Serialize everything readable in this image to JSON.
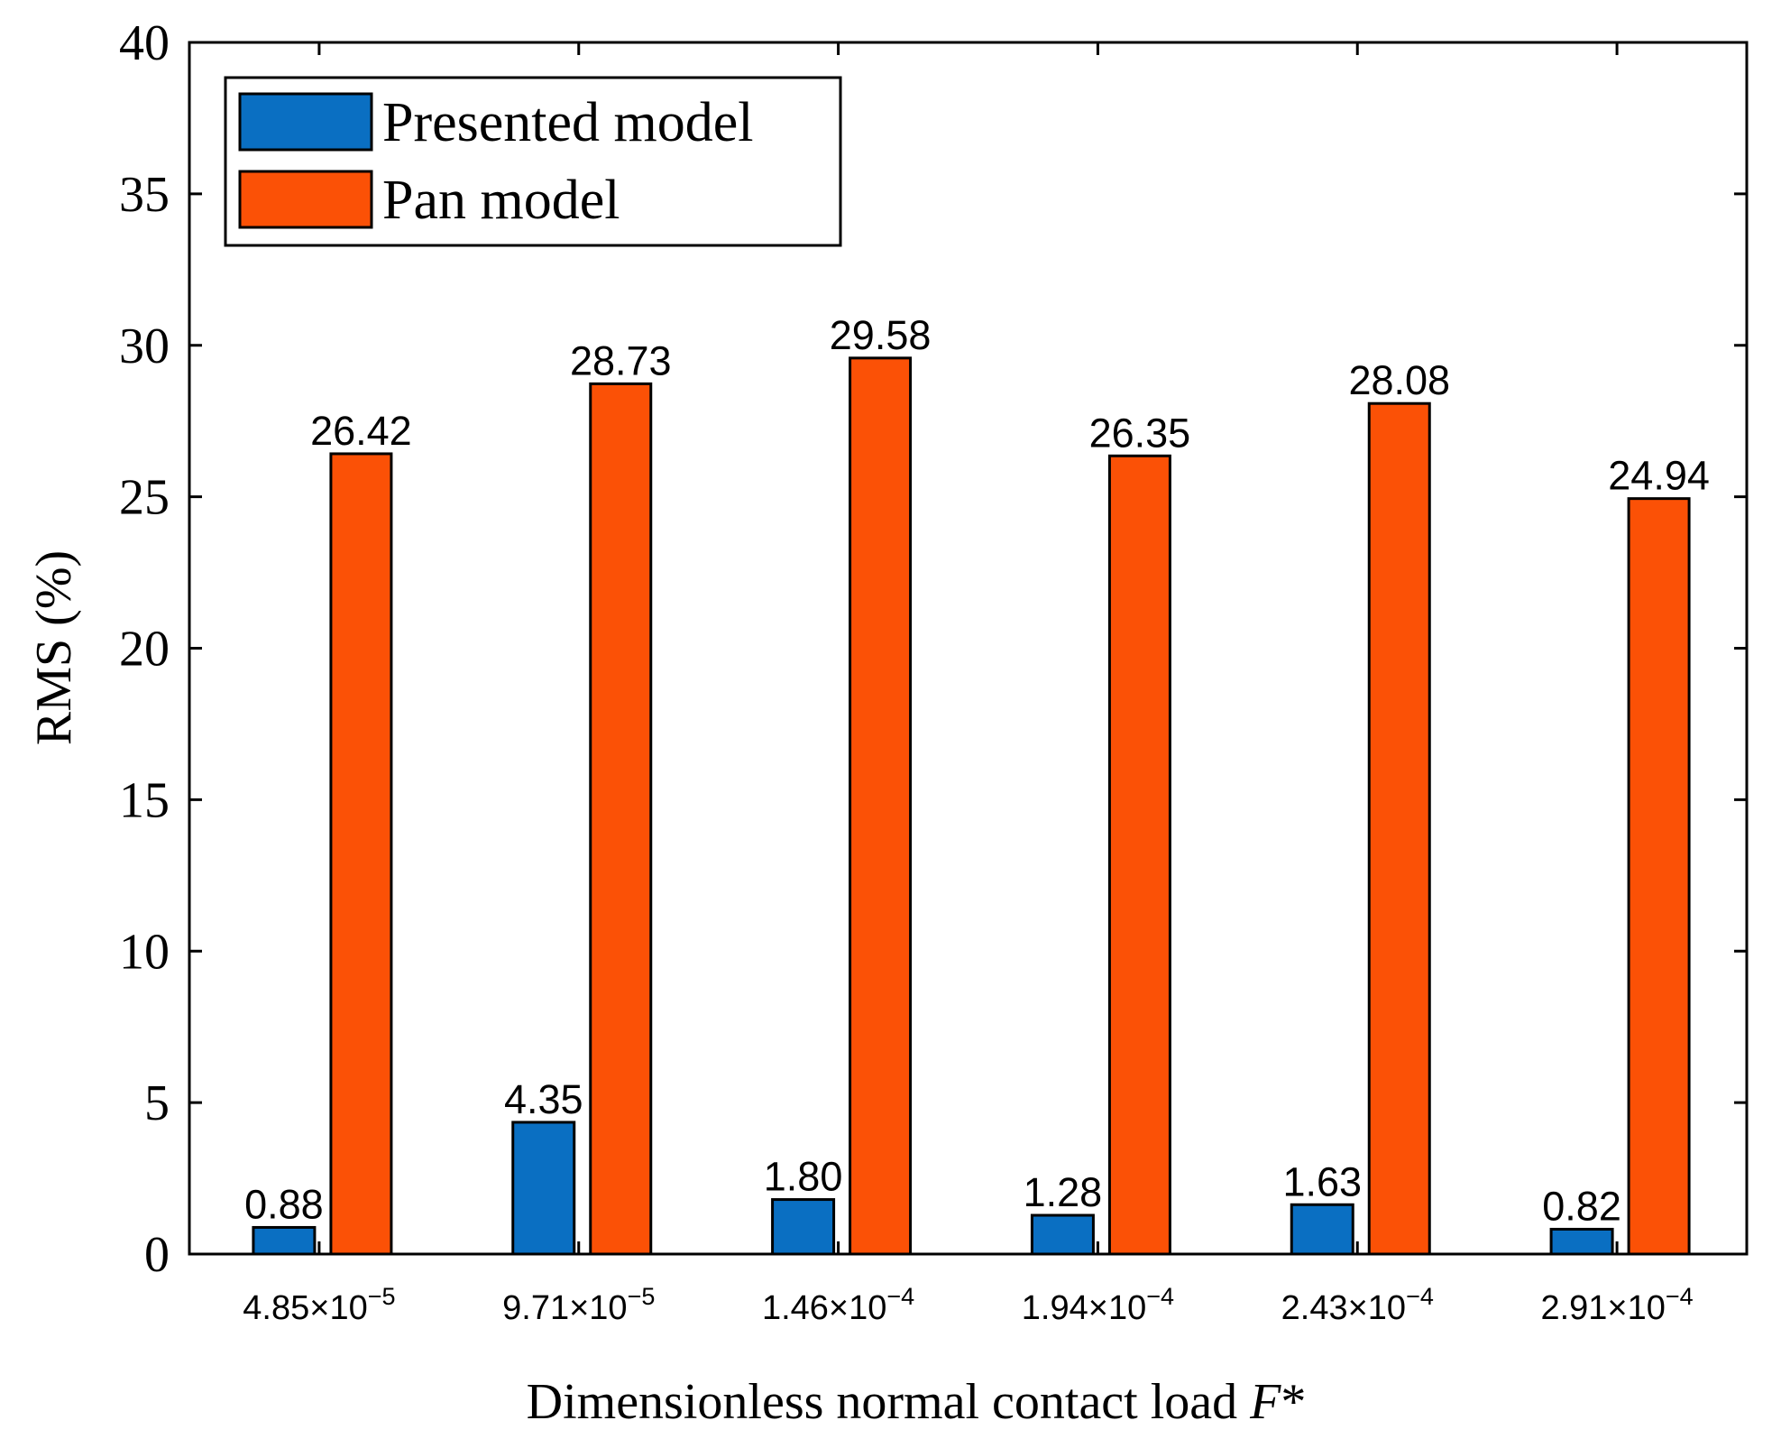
{
  "chart_data": {
    "type": "bar",
    "title": "",
    "xlabel": "Dimensionless normal contact load ",
    "xlabel_italic": "F",
    "xlabel_suffix": "*",
    "ylabel": "RMS (%)",
    "ylim": [
      0,
      40
    ],
    "yticks": [
      0,
      5,
      10,
      15,
      20,
      25,
      30,
      35,
      40
    ],
    "grid": false,
    "legend_position": "top-left",
    "categories": [
      {
        "base": "4.85×10",
        "exp": "−5"
      },
      {
        "base": "9.71×10",
        "exp": "−5"
      },
      {
        "base": "1.46×10",
        "exp": "−4"
      },
      {
        "base": "1.94×10",
        "exp": "−4"
      },
      {
        "base": "2.43×10",
        "exp": "−4"
      },
      {
        "base": "2.91×10",
        "exp": "−4"
      }
    ],
    "series": [
      {
        "name": "Presented model",
        "color": "#0a6fc2",
        "values": [
          0.88,
          4.35,
          1.8,
          1.28,
          1.63,
          0.82
        ],
        "labels": [
          "0.88",
          "4.35",
          "1.80",
          "1.28",
          "1.63",
          "0.82"
        ]
      },
      {
        "name": "Pan model",
        "color": "#fb5106",
        "values": [
          26.42,
          28.73,
          29.58,
          26.35,
          28.08,
          24.94
        ],
        "labels": [
          "26.42",
          "28.73",
          "29.58",
          "26.35",
          "28.08",
          "24.94"
        ]
      }
    ]
  }
}
